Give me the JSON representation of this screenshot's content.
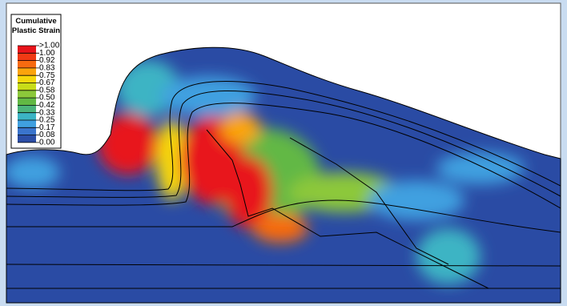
{
  "legend": {
    "title": [
      "Cumulative",
      "Plastic Strain"
    ],
    "labels": [
      ">1.00",
      "1.00",
      "0.92",
      "0.83",
      "0.75",
      "0.67",
      "0.58",
      "0.50",
      "0.42",
      "0.33",
      "0.25",
      "0.17",
      "0.08",
      "0.00"
    ],
    "colors": [
      "#e8141b",
      "#f03a14",
      "#f76a10",
      "#fba40c",
      "#f6d80c",
      "#c8dc18",
      "#8cc83a",
      "#62b844",
      "#4cb47c",
      "#3cb4c4",
      "#40a0e0",
      "#3a74cc",
      "#2c4ea6"
    ]
  }
}
